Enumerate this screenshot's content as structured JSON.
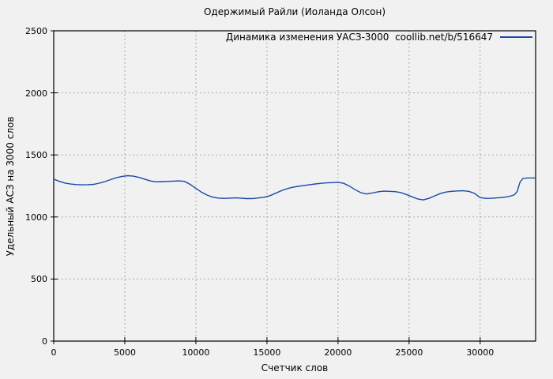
{
  "page": {
    "background_color": "#f1f1f1",
    "border_color": "#000000",
    "grid_color": "#a9a9a9"
  },
  "chart_data": {
    "type": "line",
    "title": "Одержимый Райли (Иоланда Олсон)",
    "xlabel": "Счетчик слов",
    "ylabel": "Удельный АСЗ на 3000 слов",
    "xlim": [
      0,
      33900
    ],
    "ylim": [
      0,
      2500
    ],
    "xticks": [
      0,
      5000,
      10000,
      15000,
      20000,
      25000,
      30000
    ],
    "yticks": [
      0,
      500,
      1000,
      1500,
      2000,
      2500
    ],
    "grid": true,
    "legend_position": "top-right-inside",
    "series": [
      {
        "name": "Динамика изменения УАСЗ-3000  coollib.net/b/516647",
        "color": "#1c49a8",
        "points": [
          [
            0,
            1305
          ],
          [
            400,
            1287
          ],
          [
            800,
            1273
          ],
          [
            1200,
            1265
          ],
          [
            1600,
            1261
          ],
          [
            2000,
            1259
          ],
          [
            2400,
            1260
          ],
          [
            2800,
            1263
          ],
          [
            3200,
            1272
          ],
          [
            3600,
            1285
          ],
          [
            4000,
            1301
          ],
          [
            4400,
            1316
          ],
          [
            4800,
            1327
          ],
          [
            5200,
            1333
          ],
          [
            5600,
            1329
          ],
          [
            6000,
            1319
          ],
          [
            6400,
            1305
          ],
          [
            6800,
            1290
          ],
          [
            7200,
            1283
          ],
          [
            7600,
            1285
          ],
          [
            8000,
            1287
          ],
          [
            8400,
            1289
          ],
          [
            8800,
            1291
          ],
          [
            9200,
            1287
          ],
          [
            9600,
            1263
          ],
          [
            10000,
            1230
          ],
          [
            10400,
            1200
          ],
          [
            10800,
            1176
          ],
          [
            11200,
            1159
          ],
          [
            11600,
            1152
          ],
          [
            12000,
            1150
          ],
          [
            12400,
            1152
          ],
          [
            12800,
            1154
          ],
          [
            13200,
            1151
          ],
          [
            13600,
            1148
          ],
          [
            14000,
            1149
          ],
          [
            14400,
            1153
          ],
          [
            14800,
            1159
          ],
          [
            15200,
            1171
          ],
          [
            15600,
            1191
          ],
          [
            16000,
            1211
          ],
          [
            16400,
            1227
          ],
          [
            16800,
            1239
          ],
          [
            17200,
            1247
          ],
          [
            17600,
            1254
          ],
          [
            18000,
            1260
          ],
          [
            18400,
            1266
          ],
          [
            18800,
            1271
          ],
          [
            19200,
            1275
          ],
          [
            19600,
            1277
          ],
          [
            20000,
            1279
          ],
          [
            20400,
            1271
          ],
          [
            20800,
            1249
          ],
          [
            21200,
            1220
          ],
          [
            21600,
            1196
          ],
          [
            22000,
            1185
          ],
          [
            22400,
            1193
          ],
          [
            22800,
            1203
          ],
          [
            23200,
            1208
          ],
          [
            23600,
            1207
          ],
          [
            24000,
            1204
          ],
          [
            24400,
            1197
          ],
          [
            24800,
            1181
          ],
          [
            25200,
            1163
          ],
          [
            25600,
            1145
          ],
          [
            26000,
            1138
          ],
          [
            26400,
            1150
          ],
          [
            26800,
            1170
          ],
          [
            27200,
            1189
          ],
          [
            27600,
            1201
          ],
          [
            28000,
            1207
          ],
          [
            28400,
            1210
          ],
          [
            28800,
            1211
          ],
          [
            29200,
            1207
          ],
          [
            29600,
            1190
          ],
          [
            30000,
            1156
          ],
          [
            30400,
            1150
          ],
          [
            30800,
            1151
          ],
          [
            31200,
            1154
          ],
          [
            31600,
            1157
          ],
          [
            32000,
            1164
          ],
          [
            32400,
            1178
          ],
          [
            32600,
            1205
          ],
          [
            32800,
            1280
          ],
          [
            33000,
            1310
          ],
          [
            33300,
            1314
          ],
          [
            33900,
            1314
          ]
        ]
      }
    ]
  }
}
